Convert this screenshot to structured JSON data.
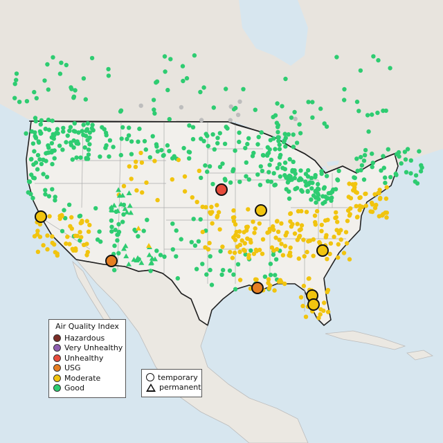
{
  "colors": {
    "hazardous": "#7b2d26",
    "very_unhealthy": "#8f5fb0",
    "unhealthy": "#e74c3c",
    "usg": "#e67e22",
    "moderate": "#f1c40f",
    "good": "#2ecc71",
    "no_data": "#bdbdbd"
  },
  "legend_aqi": {
    "title": "Air Quality Index",
    "items": [
      {
        "label": "Hazardous",
        "color": "#7b2d26"
      },
      {
        "label": "Very Unhealthy",
        "color": "#8f5fb0"
      },
      {
        "label": "Unhealthy",
        "color": "#e74c3c"
      },
      {
        "label": "USG",
        "color": "#e67e22"
      },
      {
        "label": "Moderate",
        "color": "#f1c40f"
      },
      {
        "label": "Good",
        "color": "#2ecc71"
      }
    ]
  },
  "legend_type": {
    "items": [
      {
        "label": "temporary",
        "shape": "circle"
      },
      {
        "label": "permanent",
        "shape": "triangle"
      }
    ]
  }
}
